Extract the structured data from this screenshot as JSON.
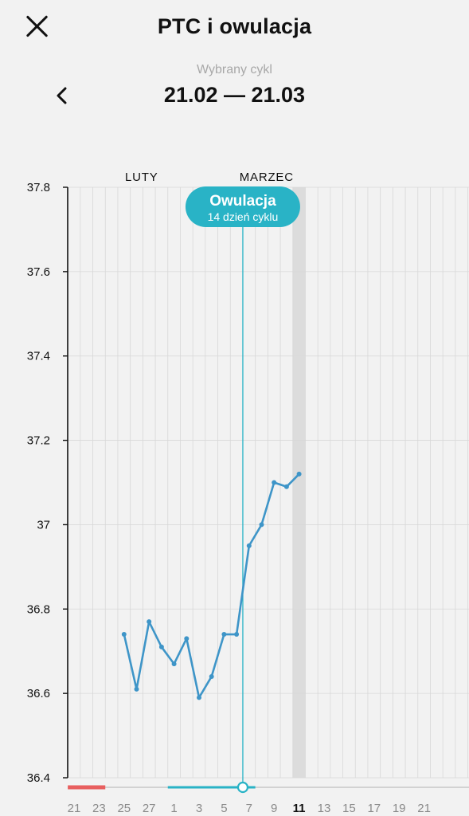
{
  "header": {
    "title": "PTC i owulacja",
    "close_icon": "close-icon"
  },
  "cycle": {
    "caption": "Wybrany cykl",
    "range": "21.02 — 21.03",
    "prev_icon": "chevron-left-icon"
  },
  "chart_data": {
    "type": "line",
    "month_labels": [
      {
        "label": "LUTY",
        "at_day_index": 4
      },
      {
        "label": "MARZEC",
        "at_day_index": 14
      }
    ],
    "x_tick_labels": [
      "21",
      "23",
      "25",
      "27",
      "1",
      "3",
      "5",
      "7",
      "9",
      "11",
      "13",
      "15",
      "17",
      "19",
      "21"
    ],
    "x_tick_every_days": 2,
    "total_days": 32,
    "current_day_label": "11",
    "current_day_index": 18,
    "ylim": [
      36.4,
      37.8
    ],
    "y_ticks": [
      37.8,
      37.6,
      37.4,
      37.2,
      37,
      36.8,
      36.6,
      36.4
    ],
    "series": [
      {
        "x_day_index": [
          4,
          5,
          6,
          7,
          8,
          9,
          10,
          11,
          12,
          13,
          14,
          15,
          16,
          17,
          18
        ],
        "values": [
          36.74,
          36.61,
          36.77,
          36.71,
          36.67,
          36.73,
          36.59,
          36.64,
          36.74,
          36.74,
          36.95,
          37.0,
          37.1,
          37.09,
          37.12
        ]
      }
    ],
    "ovulation": {
      "title": "Owulacja",
      "subtitle": "14 dzień cyklu",
      "day_index": 13.5
    },
    "period_range": {
      "start_day_index": -0.5,
      "end_day_index": 2.5
    },
    "fertile_range": {
      "start_day_index": 7.5,
      "end_day_index": 14.5
    },
    "grid": true,
    "colors": {
      "line": "#3e95c8",
      "ovulation": "#29b3c6",
      "period": "#e85f5f",
      "fertile": "#29b3c6",
      "today_column": "#dcdcdc",
      "grid": "#d8d8d8",
      "axis": "#111111"
    }
  }
}
